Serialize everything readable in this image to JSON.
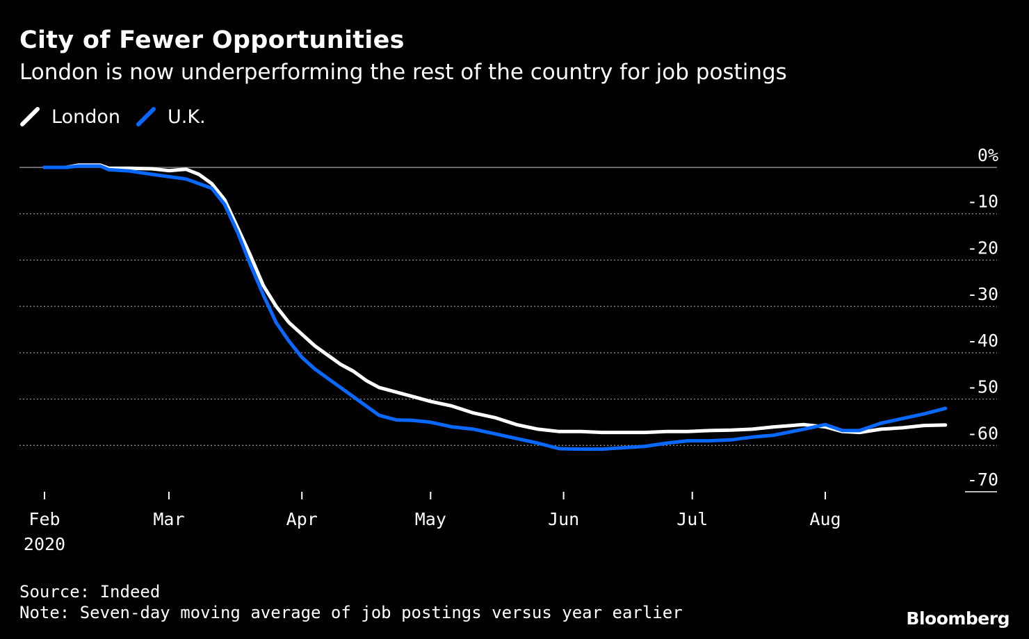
{
  "chart_data": {
    "type": "line",
    "title": "City of Fewer Opportunities",
    "subtitle": "London is now underperforming the rest of the country for job postings",
    "x_ticks": [
      {
        "label": "Feb",
        "sublabel": "2020",
        "day": 0
      },
      {
        "label": "Mar",
        "sublabel": "",
        "day": 29
      },
      {
        "label": "Apr",
        "sublabel": "",
        "day": 60
      },
      {
        "label": "May",
        "sublabel": "",
        "day": 90
      },
      {
        "label": "Jun",
        "sublabel": "",
        "day": 121
      },
      {
        "label": "Jul",
        "sublabel": "",
        "day": 151
      },
      {
        "label": "Aug",
        "sublabel": "",
        "day": 182
      }
    ],
    "x_range_days": [
      -5,
      220
    ],
    "y_ticks": [
      0,
      -10,
      -20,
      -30,
      -40,
      -50,
      -60,
      -70
    ],
    "y_tick_labels": [
      "0%",
      "-10",
      "-20",
      "-30",
      "-40",
      "-50",
      "-60",
      "-70"
    ],
    "ylim": [
      -70,
      0
    ],
    "legend": "top-left",
    "series": [
      {
        "name": "London",
        "color": "#ffffff",
        "points": [
          [
            0,
            0
          ],
          [
            5,
            0
          ],
          [
            8,
            0.5
          ],
          [
            13,
            0.5
          ],
          [
            15,
            -0.2
          ],
          [
            20,
            -0.2
          ],
          [
            25,
            -0.3
          ],
          [
            29,
            -0.7
          ],
          [
            33,
            -0.4
          ],
          [
            36,
            -1.5
          ],
          [
            39,
            -3.5
          ],
          [
            42,
            -7
          ],
          [
            45,
            -13
          ],
          [
            48,
            -19
          ],
          [
            51,
            -25.5
          ],
          [
            54,
            -30
          ],
          [
            57,
            -33.5
          ],
          [
            60,
            -36
          ],
          [
            63,
            -38.5
          ],
          [
            66,
            -40.5
          ],
          [
            69,
            -42.5
          ],
          [
            72,
            -44
          ],
          [
            75,
            -46
          ],
          [
            78,
            -47.5
          ],
          [
            82,
            -48.5
          ],
          [
            86,
            -49.5
          ],
          [
            90,
            -50.5
          ],
          [
            95,
            -51.5
          ],
          [
            100,
            -53
          ],
          [
            105,
            -54
          ],
          [
            110,
            -55.5
          ],
          [
            115,
            -56.5
          ],
          [
            120,
            -57
          ],
          [
            125,
            -57
          ],
          [
            130,
            -57.2
          ],
          [
            135,
            -57.2
          ],
          [
            140,
            -57.2
          ],
          [
            145,
            -57
          ],
          [
            150,
            -57
          ],
          [
            155,
            -56.8
          ],
          [
            160,
            -56.7
          ],
          [
            165,
            -56.5
          ],
          [
            170,
            -56
          ],
          [
            177,
            -55.5
          ],
          [
            182,
            -56
          ],
          [
            186,
            -57
          ],
          [
            190,
            -57.2
          ],
          [
            195,
            -56.5
          ],
          [
            200,
            -56.2
          ],
          [
            205,
            -55.7
          ],
          [
            210,
            -55.6
          ]
        ]
      },
      {
        "name": "U.K.",
        "color": "#0868ff",
        "points": [
          [
            0,
            0
          ],
          [
            5,
            0
          ],
          [
            8,
            0.3
          ],
          [
            13,
            0.3
          ],
          [
            15,
            -0.5
          ],
          [
            20,
            -0.8
          ],
          [
            25,
            -1.5
          ],
          [
            29,
            -2
          ],
          [
            33,
            -2.5
          ],
          [
            36,
            -3.5
          ],
          [
            39,
            -4.5
          ],
          [
            42,
            -8
          ],
          [
            45,
            -14
          ],
          [
            48,
            -21
          ],
          [
            51,
            -27.5
          ],
          [
            54,
            -33.5
          ],
          [
            57,
            -37.5
          ],
          [
            60,
            -41
          ],
          [
            63,
            -43.5
          ],
          [
            66,
            -45.5
          ],
          [
            69,
            -47.5
          ],
          [
            72,
            -49.5
          ],
          [
            75,
            -51.5
          ],
          [
            78,
            -53.5
          ],
          [
            82,
            -54.5
          ],
          [
            86,
            -54.6
          ],
          [
            90,
            -55
          ],
          [
            95,
            -56
          ],
          [
            100,
            -56.5
          ],
          [
            105,
            -57.5
          ],
          [
            110,
            -58.5
          ],
          [
            115,
            -59.5
          ],
          [
            120,
            -60.7
          ],
          [
            125,
            -60.8
          ],
          [
            130,
            -60.8
          ],
          [
            135,
            -60.5
          ],
          [
            140,
            -60.2
          ],
          [
            145,
            -59.5
          ],
          [
            150,
            -59
          ],
          [
            155,
            -59
          ],
          [
            160,
            -58.8
          ],
          [
            165,
            -58.2
          ],
          [
            170,
            -57.8
          ],
          [
            177,
            -56.5
          ],
          [
            182,
            -55.5
          ],
          [
            186,
            -56.8
          ],
          [
            190,
            -56.8
          ],
          [
            195,
            -55.2
          ],
          [
            200,
            -54.2
          ],
          [
            205,
            -53.2
          ],
          [
            210,
            -52
          ]
        ]
      }
    ],
    "source": "Source: Indeed",
    "note": "Note: Seven-day moving average of job postings versus year earlier"
  },
  "branding": {
    "logo": "Bloomberg"
  },
  "colors": {
    "background": "#000000",
    "text": "#ffffff",
    "grid": "#9a9a9a",
    "zero_line": "#8a8a8a"
  }
}
